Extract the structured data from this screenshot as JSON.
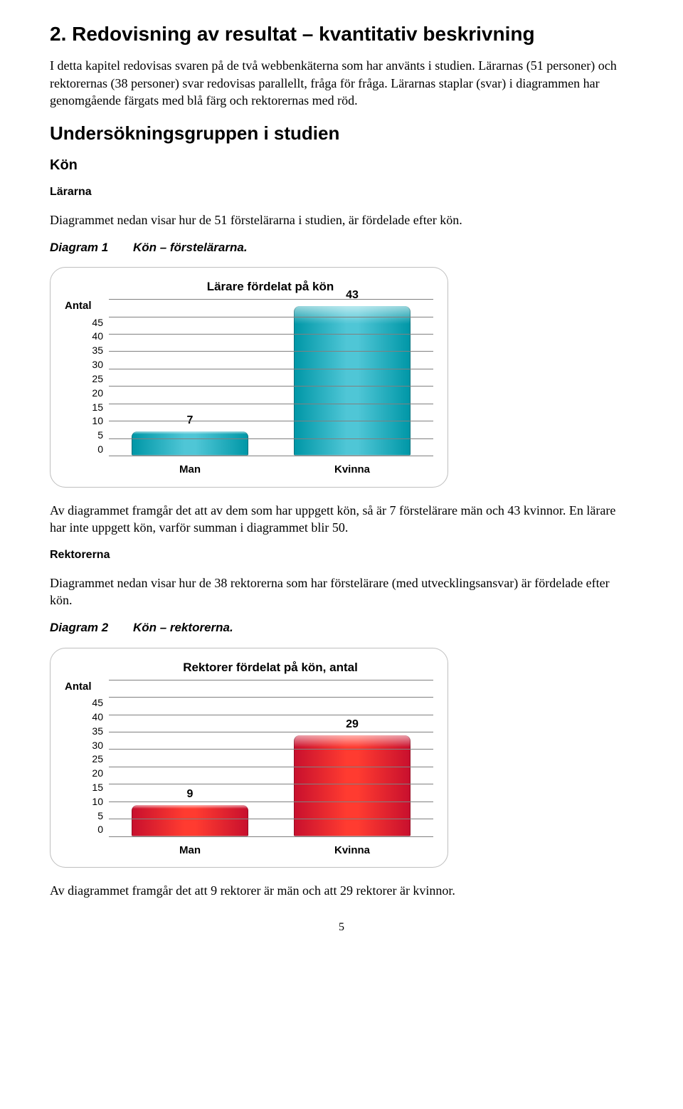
{
  "h1": "2. Redovisning av resultat – kvantitativ beskrivning",
  "intro": "I detta kapitel redovisas svaren på de två webbenkäterna som har använts i studien. Lärarnas (51 personer) och rektorernas (38 personer) svar redovisas parallellt, fråga för fråga. Lärarnas staplar (svar) i diagrammen har genomgående färgats med blå färg och rektorernas med röd.",
  "section_h2": "Undersökningsgruppen i studien",
  "kon_h3": "Kön",
  "lararna_label": "Lärarna",
  "lararna_p": "Diagrammet nedan visar hur de 51 förstelärarna i studien, är fördelade efter kön.",
  "diagram1": {
    "tag": "Diagram 1",
    "caption": "Kön – förstelärarna."
  },
  "diagram2": {
    "tag": "Diagram 2",
    "caption": "Kön – rektorerna."
  },
  "chart1": {
    "type": "bar",
    "title": "Lärare fördelat på kön",
    "y_label": "Antal",
    "y_max": 45,
    "y_ticks": [
      45,
      40,
      35,
      30,
      25,
      20,
      15,
      10,
      5,
      0
    ],
    "categories": [
      "Man",
      "Kvinna"
    ],
    "values": [
      7,
      43
    ],
    "bar_color_light": "#4FC6D6",
    "bar_color_dark": "#0097A7",
    "border_color": "#bfbfbf",
    "grid_color": "#808080",
    "bg": "#ffffff",
    "title_fontsize": 17,
    "label_fontsize": 15,
    "tick_fontsize": 14,
    "bar_width_pct": 36
  },
  "after_chart1_p": "Av diagrammet framgår det att av dem som har uppgett kön, så är 7 förstelärare män och 43 kvinnor. En lärare har inte uppgett kön, varför summan i diagrammet blir 50.",
  "rektorerna_label": "Rektorerna",
  "rektorerna_p": "Diagrammet nedan visar hur de 38 rektorerna som har förstelärare (med utvecklingsansvar) är fördelade efter kön.",
  "chart2": {
    "type": "bar",
    "title": "Rektorer fördelat på kön, antal",
    "y_label": "Antal",
    "y_max": 45,
    "y_ticks": [
      45,
      40,
      35,
      30,
      25,
      20,
      15,
      10,
      5,
      0
    ],
    "categories": [
      "Man",
      "Kvinna"
    ],
    "values": [
      9,
      29
    ],
    "bar_color_light": "#FF3B30",
    "bar_color_dark": "#C8102E",
    "border_color": "#bfbfbf",
    "grid_color": "#808080",
    "bg": "#ffffff",
    "title_fontsize": 17,
    "label_fontsize": 15,
    "tick_fontsize": 14,
    "bar_width_pct": 36
  },
  "after_chart2_p": "Av diagrammet framgår det att 9 rektorer är män och att 29 rektorer är kvinnor.",
  "page_number": "5"
}
